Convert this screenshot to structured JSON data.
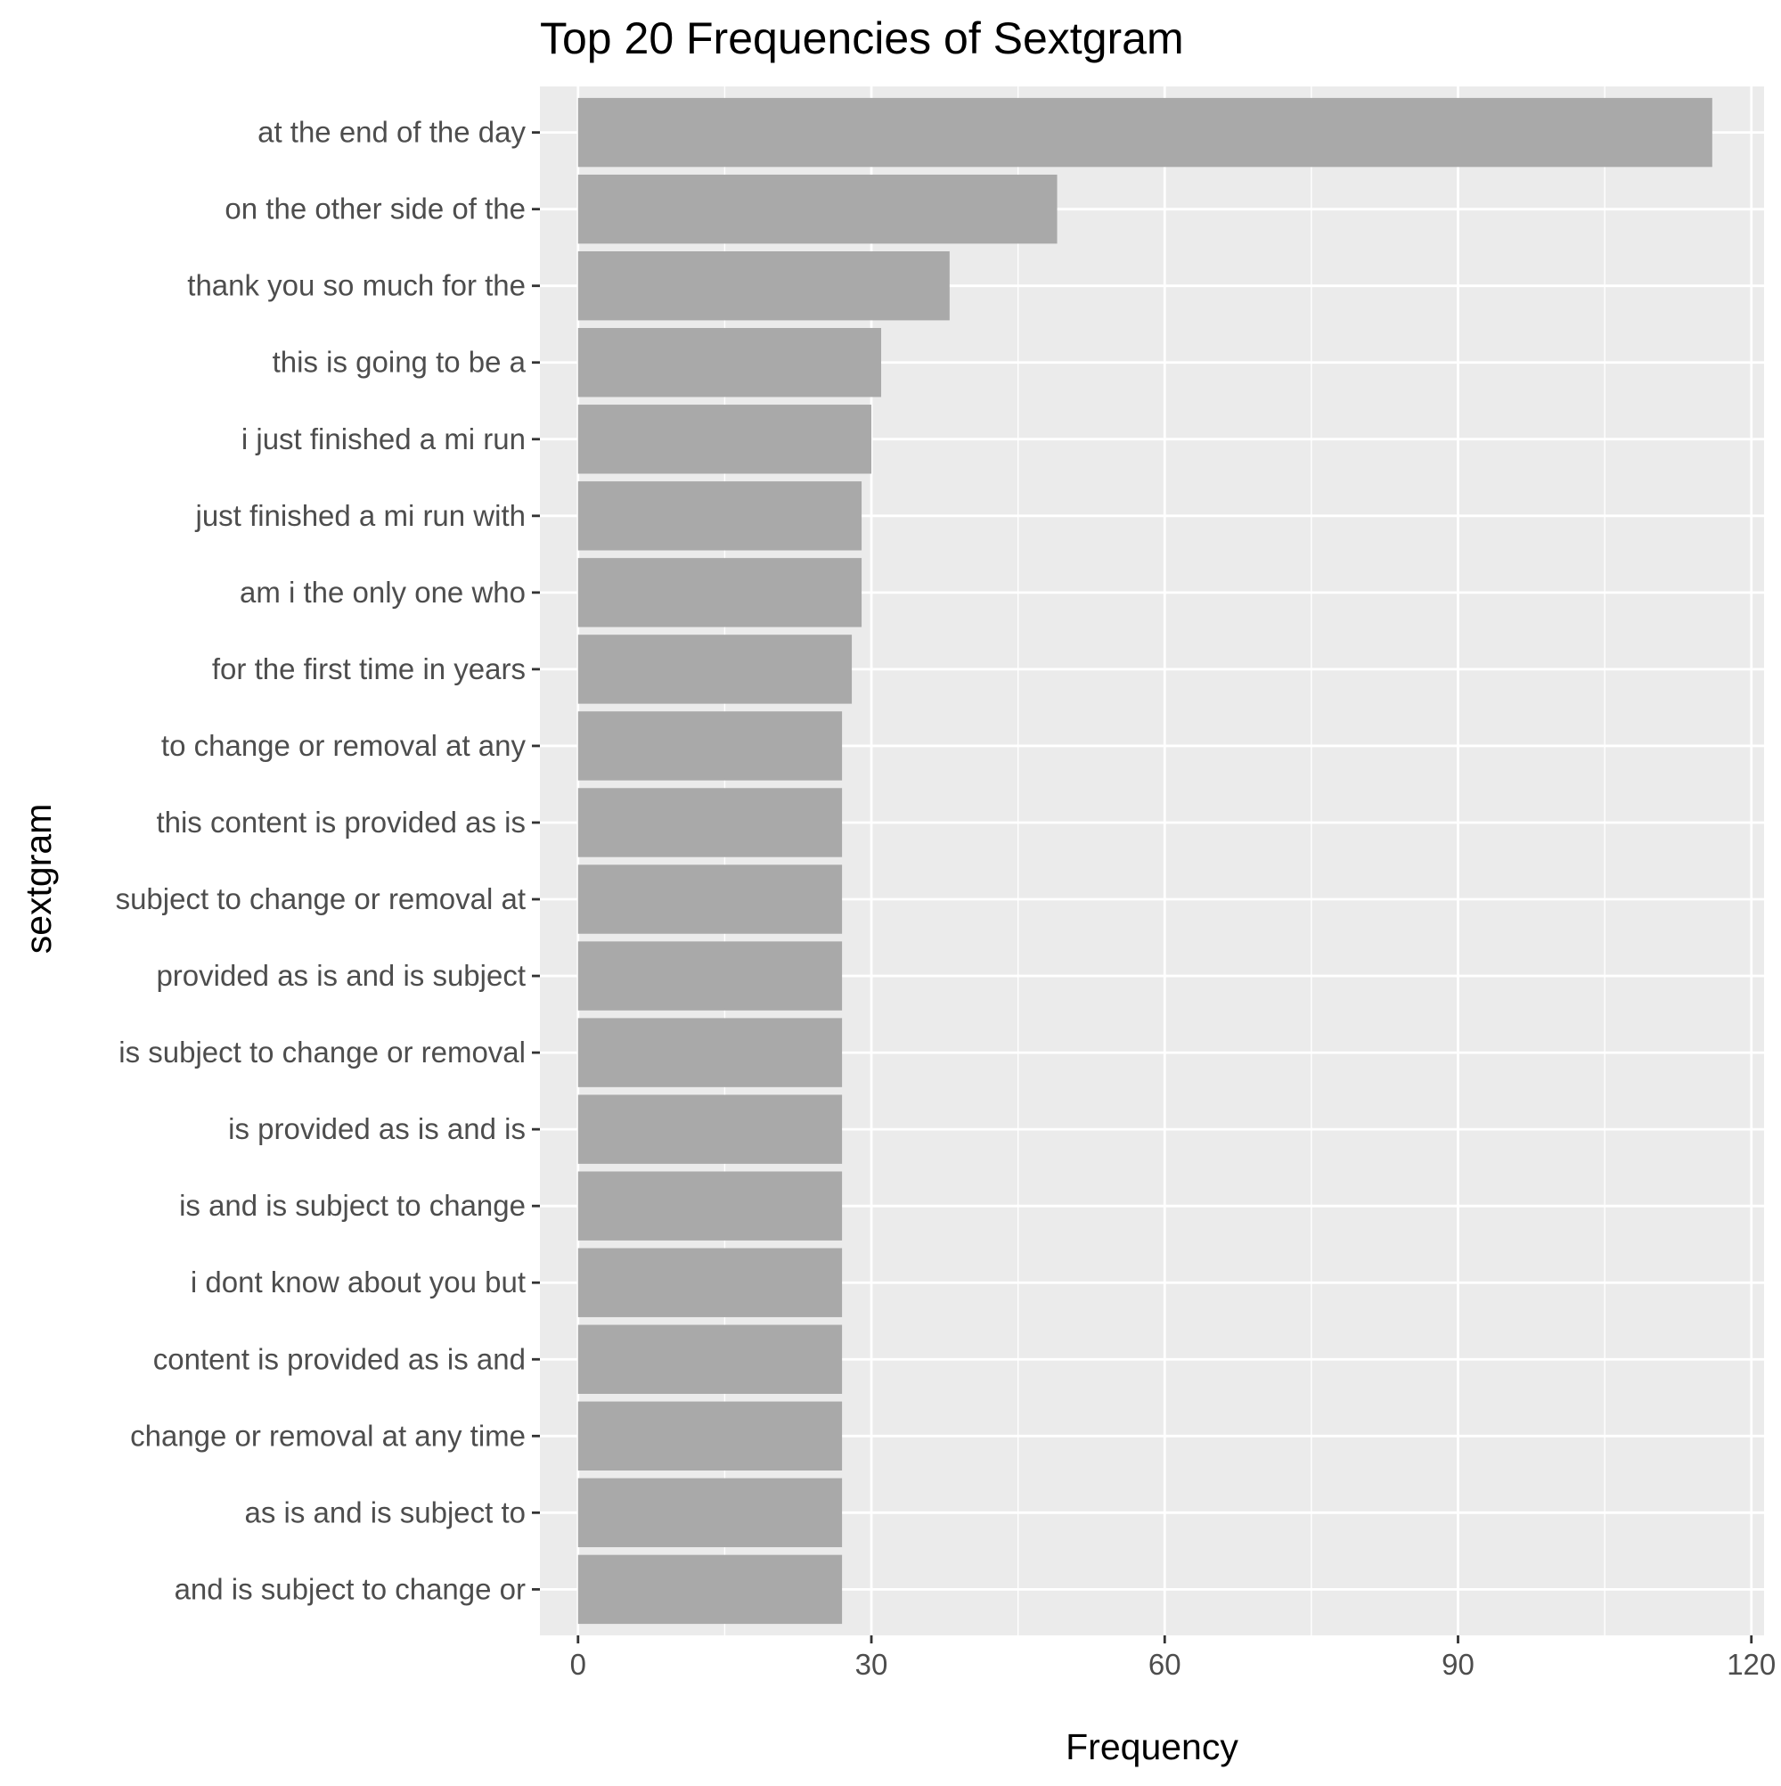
{
  "chart_data": {
    "type": "bar",
    "orientation": "horizontal",
    "title": "Top 20 Frequencies of Sextgram",
    "xlabel": "Frequency",
    "ylabel": "sextgram",
    "xlim": [
      -3.9,
      121.3
    ],
    "x_ticks": [
      0,
      30,
      60,
      90,
      120
    ],
    "grid": true,
    "bar_color": "#a9a9a9",
    "panel_color": "#ebebeb",
    "gridline_color": "#ffffff",
    "categories": [
      "at the end of the day",
      "on the other side of the",
      "thank you so much for the",
      "this is going to be a",
      "i just finished a mi run",
      "just finished a mi run with",
      "am i the only one who",
      "for the first time in years",
      "to change or removal at any",
      "this content is provided as is",
      "subject to change or removal at",
      "provided as is and is subject",
      "is subject to change or removal",
      "is provided as is and is",
      "is and is subject to change",
      "i dont know about you but",
      "content is provided as is and",
      "change or removal at any time",
      "as is and is subject to",
      "and is subject to change or"
    ],
    "values": [
      116,
      49,
      38,
      31,
      30,
      29,
      29,
      28,
      27,
      27,
      27,
      27,
      27,
      27,
      27,
      27,
      27,
      27,
      27,
      27
    ]
  }
}
